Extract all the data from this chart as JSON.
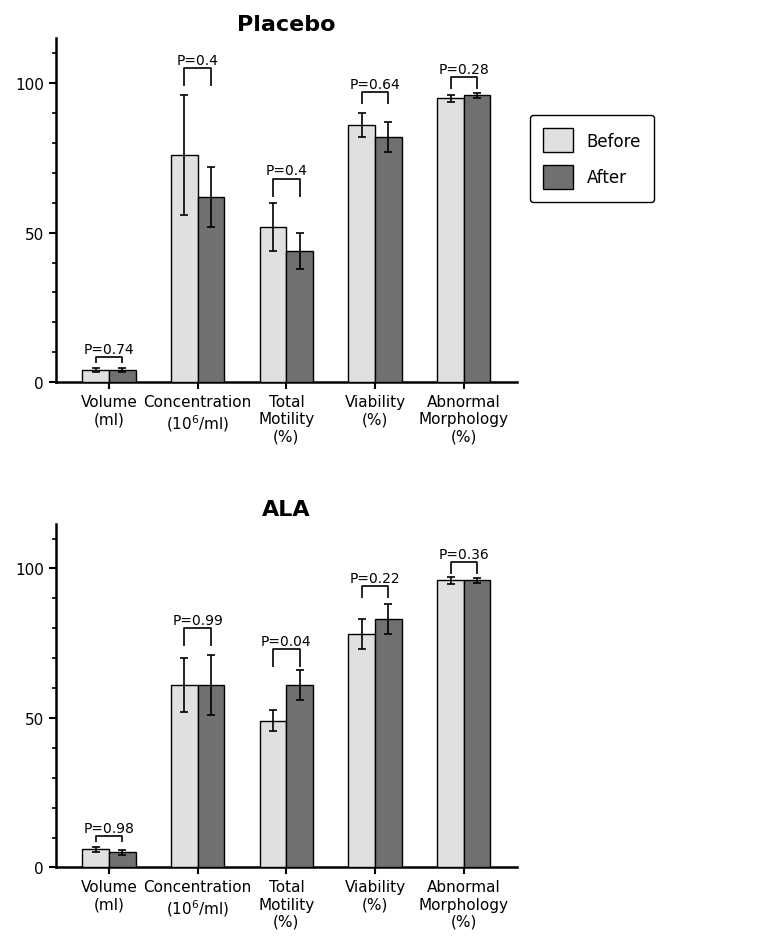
{
  "placebo": {
    "title": "Placebo",
    "categories": [
      "Volume\n(ml)",
      "Concentration\n(10$^6$/ml)",
      "Total\nMotility\n(%)",
      "Viability\n(%)",
      "Abnormal\nMorphology\n(%)"
    ],
    "before": [
      4.0,
      76,
      52,
      86,
      95
    ],
    "after": [
      4.0,
      62,
      44,
      82,
      96
    ],
    "before_err": [
      0.6,
      20,
      8,
      4,
      1.2
    ],
    "after_err": [
      0.6,
      10,
      6,
      5,
      0.8
    ],
    "pvalues": [
      "P=0.74",
      "P=0.4",
      "P=0.4",
      "P=0.64",
      "P=0.28"
    ],
    "bracket_y1": [
      6.5,
      99,
      62,
      93,
      98
    ],
    "bracket_y2": [
      8.5,
      105,
      68,
      97,
      102
    ],
    "pval_y": [
      8.7,
      105.5,
      68.5,
      97.5,
      102.5
    ]
  },
  "ala": {
    "title": "ALA",
    "categories": [
      "Volume\n(ml)",
      "Concentration\n(10$^6$/ml)",
      "Total\nMotility\n(%)",
      "Viability\n(%)",
      "Abnormal\nMorphology\n(%)"
    ],
    "before": [
      6.0,
      61,
      49,
      78,
      96
    ],
    "after": [
      5.0,
      61,
      61,
      83,
      96
    ],
    "before_err": [
      0.8,
      9,
      3.5,
      5,
      1.2
    ],
    "after_err": [
      0.7,
      10,
      5,
      5,
      0.8
    ],
    "pvalues": [
      "P=0.98",
      "P=0.99",
      "P=0.04",
      "P=0.22",
      "P=0.36"
    ],
    "bracket_y1": [
      8.5,
      74,
      67,
      90,
      98
    ],
    "bracket_y2": [
      10.5,
      80,
      73,
      94,
      102
    ],
    "pval_y": [
      10.7,
      80.5,
      73.5,
      94.5,
      102.5
    ]
  },
  "bar_width": 0.3,
  "before_color": "#e0e0e0",
  "after_color": "#707070",
  "edge_color": "#000000",
  "ylim": [
    0,
    115
  ],
  "yticks": [
    0,
    50,
    100
  ],
  "title_fontsize": 16,
  "tick_fontsize": 11,
  "pval_fontsize": 10,
  "legend_fontsize": 12
}
